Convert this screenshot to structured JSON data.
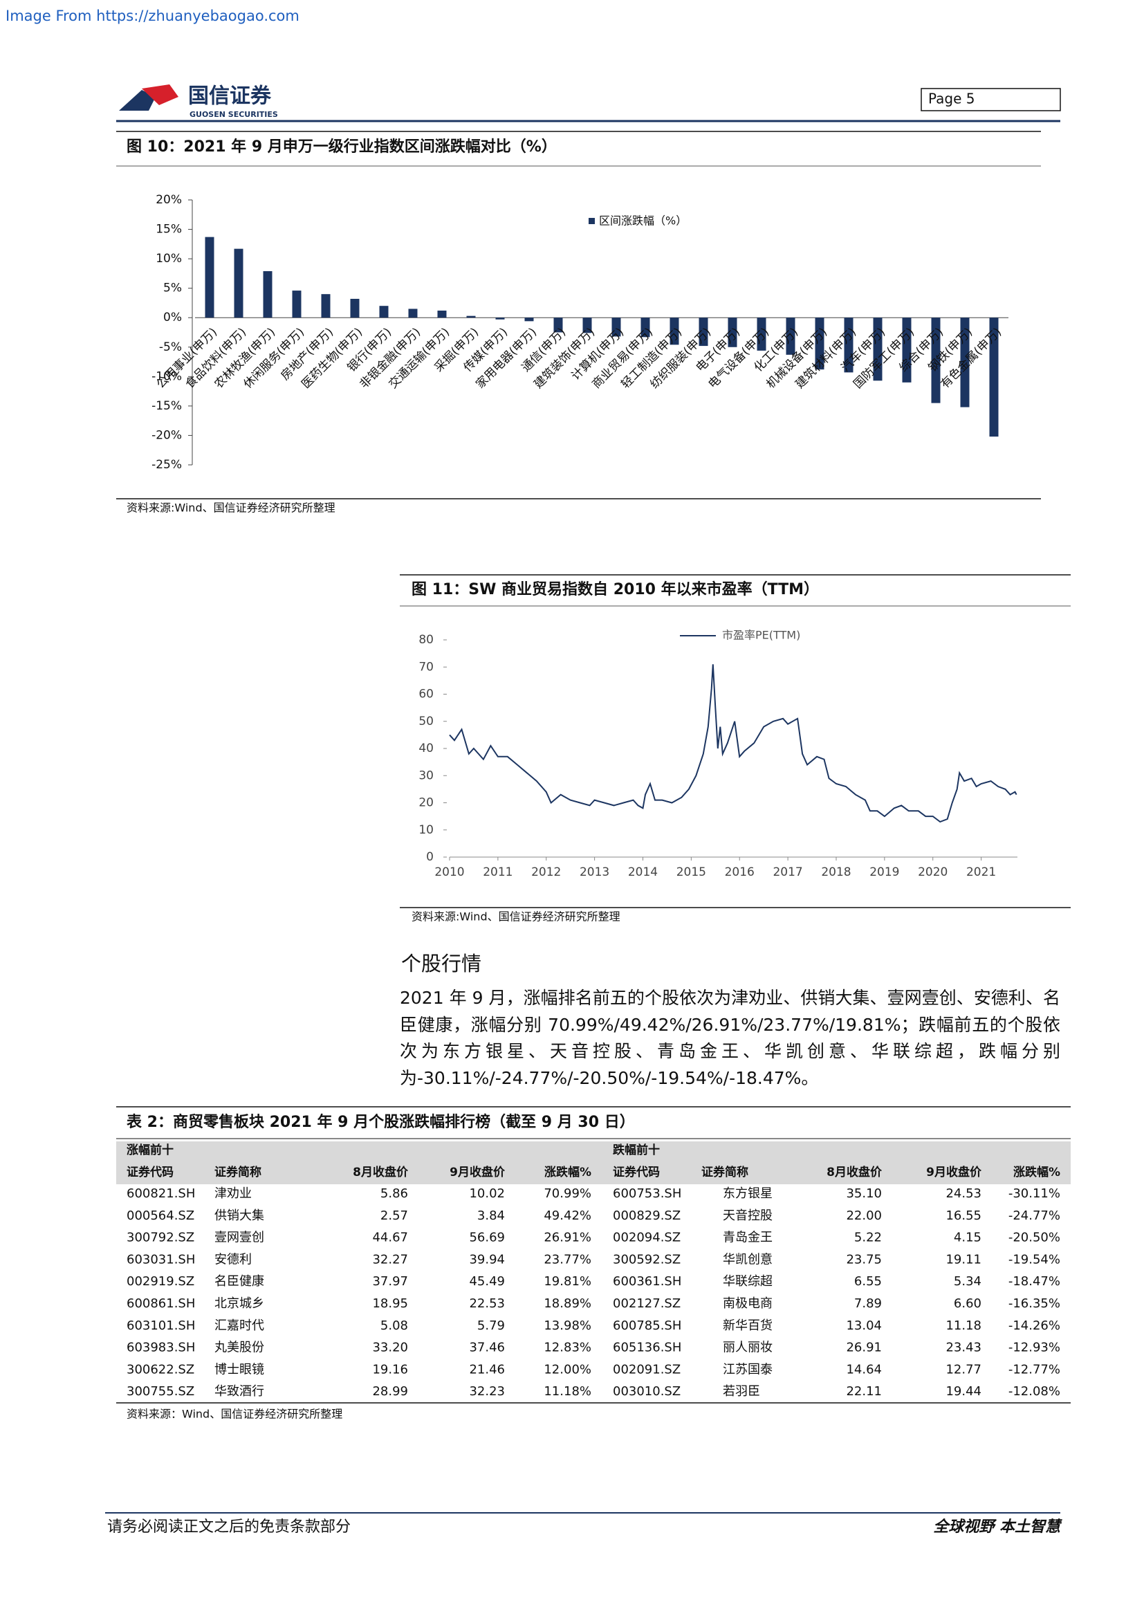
{
  "source_banner": "Image From https://zhuanyebaogao.com",
  "header": {
    "logo_name": "国信证券",
    "logo_sub": "GUOSEN SECURITIES",
    "page": "Page 5"
  },
  "chart_data": [
    {
      "type": "bar",
      "title": "图 10：2021 年 9 月申万一级行业指数区间涨跌幅对比（%）",
      "categories": [
        "公用事业(申万)",
        "食品饮料(申万)",
        "农林牧渔(申万)",
        "休闲服务(申万)",
        "房地产(申万)",
        "医药生物(申万)",
        "银行(申万)",
        "非银金融(申万)",
        "交通运输(申万)",
        "采掘(申万)",
        "传媒(申万)",
        "家用电器(申万)",
        "通信(申万)",
        "建筑装饰(申万)",
        "计算机(申万)",
        "商业贸易(申万)",
        "轻工制造(申万)",
        "纺织服装(申万)",
        "电子(申万)",
        "电气设备(申万)",
        "化工(申万)",
        "机械设备(申万)",
        "建筑材料(申万)",
        "汽车(申万)",
        "国防军工(申万)",
        "综合(申万)",
        "钢铁(申万)",
        "有色金属(申万)"
      ],
      "series": [
        {
          "name": "区间涨跌幅（%）",
          "color": "#1c3561",
          "values": [
            13.7,
            11.7,
            7.9,
            4.6,
            4.0,
            3.2,
            2.0,
            1.5,
            1.2,
            0.3,
            -0.3,
            -0.6,
            -2.5,
            -2.6,
            -3.2,
            -3.3,
            -4.6,
            -4.8,
            -5.0,
            -5.6,
            -6.3,
            -8.8,
            -9.3,
            -10.7,
            -11.0,
            -14.5,
            -15.2,
            -20.2
          ]
        }
      ],
      "ylim": [
        -25,
        20
      ],
      "yticks": [
        {
          "value": 20,
          "label": "20%"
        },
        {
          "value": 15,
          "label": "15%"
        },
        {
          "value": 10,
          "label": "10%"
        },
        {
          "value": 5,
          "label": "5%"
        },
        {
          "value": 0,
          "label": "0%"
        },
        {
          "value": -5,
          "label": "-5%"
        },
        {
          "value": -10,
          "label": "-10%"
        },
        {
          "value": -15,
          "label": "-15%"
        },
        {
          "value": -20,
          "label": "-20%"
        },
        {
          "value": -25,
          "label": "-25%"
        }
      ],
      "legend": "top",
      "note": "资料来源:Wind、国信证券经济研究所整理"
    },
    {
      "type": "line",
      "title": "图 11：SW 商业贸易指数自 2010 年以来市盈率（TTM）",
      "x": [
        2010.0,
        2010.1,
        2010.25,
        2010.4,
        2010.5,
        2010.7,
        2010.85,
        2011.0,
        2011.2,
        2011.4,
        2011.6,
        2011.8,
        2012.0,
        2012.1,
        2012.3,
        2012.5,
        2012.7,
        2012.9,
        2013.0,
        2013.2,
        2013.4,
        2013.6,
        2013.8,
        2013.9,
        2014.0,
        2014.05,
        2014.15,
        2014.25,
        2014.4,
        2014.6,
        2014.8,
        2014.95,
        2015.1,
        2015.25,
        2015.35,
        2015.42,
        2015.45,
        2015.5,
        2015.55,
        2015.6,
        2015.65,
        2015.75,
        2015.9,
        2016.0,
        2016.1,
        2016.3,
        2016.5,
        2016.7,
        2016.9,
        2017.0,
        2017.2,
        2017.3,
        2017.4,
        2017.6,
        2017.75,
        2017.85,
        2018.0,
        2018.2,
        2018.4,
        2018.6,
        2018.7,
        2018.85,
        2019.0,
        2019.2,
        2019.35,
        2019.5,
        2019.7,
        2019.85,
        2020.0,
        2020.15,
        2020.3,
        2020.4,
        2020.5,
        2020.55,
        2020.65,
        2020.8,
        2020.9,
        2021.0,
        2021.2,
        2021.35,
        2021.5,
        2021.6,
        2021.7,
        2021.73
      ],
      "series": [
        {
          "name": "市盈率PE(TTM)",
          "color": "#1c3561",
          "values": [
            45,
            43,
            47,
            38,
            40,
            36,
            41,
            37,
            37,
            34,
            31,
            28,
            24,
            20,
            23,
            21,
            20,
            19,
            21,
            20,
            19,
            20,
            21,
            19,
            18,
            23,
            27,
            21,
            21,
            20,
            22,
            25,
            30,
            38,
            48,
            62,
            71,
            55,
            40,
            48,
            38,
            42,
            50,
            37,
            39,
            42,
            48,
            50,
            51,
            49,
            51,
            38,
            34,
            37,
            36,
            29,
            27,
            26,
            23,
            21,
            17,
            17,
            15,
            18,
            19,
            17,
            17,
            15,
            15,
            13,
            14,
            20,
            25,
            31,
            28,
            29,
            26,
            27,
            28,
            26,
            25,
            23,
            24,
            23
          ]
        }
      ],
      "xlim": [
        2010,
        2021.75
      ],
      "xticks": [
        2010,
        2011,
        2012,
        2013,
        2014,
        2015,
        2016,
        2017,
        2018,
        2019,
        2020,
        2021
      ],
      "ylim": [
        0,
        80
      ],
      "yticks": [
        0,
        10,
        20,
        30,
        40,
        50,
        60,
        70,
        80
      ],
      "legend": "top",
      "note": "资料来源:Wind、国信证券经济研究所整理"
    }
  ],
  "section": {
    "heading": "个股行情",
    "paragraph": "2021 年 9 月，涨幅排名前五的个股依次为津劝业、供销大集、壹网壹创、安德利、名臣健康，涨幅分别 70.99%/49.42%/26.91%/23.77%/19.81%；跌幅前五的个股依次为东方银星、天音控股、青岛金王、华凯创意、华联综超，跌幅分别为-30.11%/-24.77%/-20.50%/-19.54%/-18.47%。"
  },
  "table": {
    "title": "表 2：商贸零售板块 2021 年 9 月个股涨跌幅排行榜（截至 9 月 30 日）",
    "groups": [
      "涨幅前十",
      "跌幅前十"
    ],
    "columns": [
      "证券代码",
      "证券简称",
      "8月收盘价",
      "9月收盘价",
      "涨跌幅%",
      "证券代码",
      "证券简称",
      "8月收盘价",
      "9月收盘价",
      "涨跌幅%"
    ],
    "rows": [
      [
        "600821.SH",
        "津劝业",
        "5.86",
        "10.02",
        "70.99%",
        "600753.SH",
        "东方银星",
        "35.10",
        "24.53",
        "-30.11%"
      ],
      [
        "000564.SZ",
        "供销大集",
        "2.57",
        "3.84",
        "49.42%",
        "000829.SZ",
        "天音控股",
        "22.00",
        "16.55",
        "-24.77%"
      ],
      [
        "300792.SZ",
        "壹网壹创",
        "44.67",
        "56.69",
        "26.91%",
        "002094.SZ",
        "青岛金王",
        "5.22",
        "4.15",
        "-20.50%"
      ],
      [
        "603031.SH",
        "安德利",
        "32.27",
        "39.94",
        "23.77%",
        "300592.SZ",
        "华凯创意",
        "23.75",
        "19.11",
        "-19.54%"
      ],
      [
        "002919.SZ",
        "名臣健康",
        "37.97",
        "45.49",
        "19.81%",
        "600361.SH",
        "华联综超",
        "6.55",
        "5.34",
        "-18.47%"
      ],
      [
        "600861.SH",
        "北京城乡",
        "18.95",
        "22.53",
        "18.89%",
        "002127.SZ",
        "南极电商",
        "7.89",
        "6.60",
        "-16.35%"
      ],
      [
        "603101.SH",
        "汇嘉时代",
        "5.08",
        "5.79",
        "13.98%",
        "600785.SH",
        "新华百货",
        "13.04",
        "11.18",
        "-14.26%"
      ],
      [
        "603983.SH",
        "丸美股份",
        "33.20",
        "37.46",
        "12.83%",
        "605136.SH",
        "丽人丽妆",
        "26.91",
        "23.43",
        "-12.93%"
      ],
      [
        "300622.SZ",
        "博士眼镜",
        "19.16",
        "21.46",
        "12.00%",
        "002091.SZ",
        "江苏国泰",
        "14.64",
        "12.77",
        "-12.77%"
      ],
      [
        "300755.SZ",
        "华致酒行",
        "28.99",
        "32.23",
        "11.18%",
        "003010.SZ",
        "若羽臣",
        "22.11",
        "19.44",
        "-12.08%"
      ]
    ],
    "note": "资料来源：Wind、国信证券经济研究所整理"
  },
  "footer": {
    "left": "请务必阅读正文之后的免责条款部分",
    "right": "全球视野 本土智慧"
  }
}
